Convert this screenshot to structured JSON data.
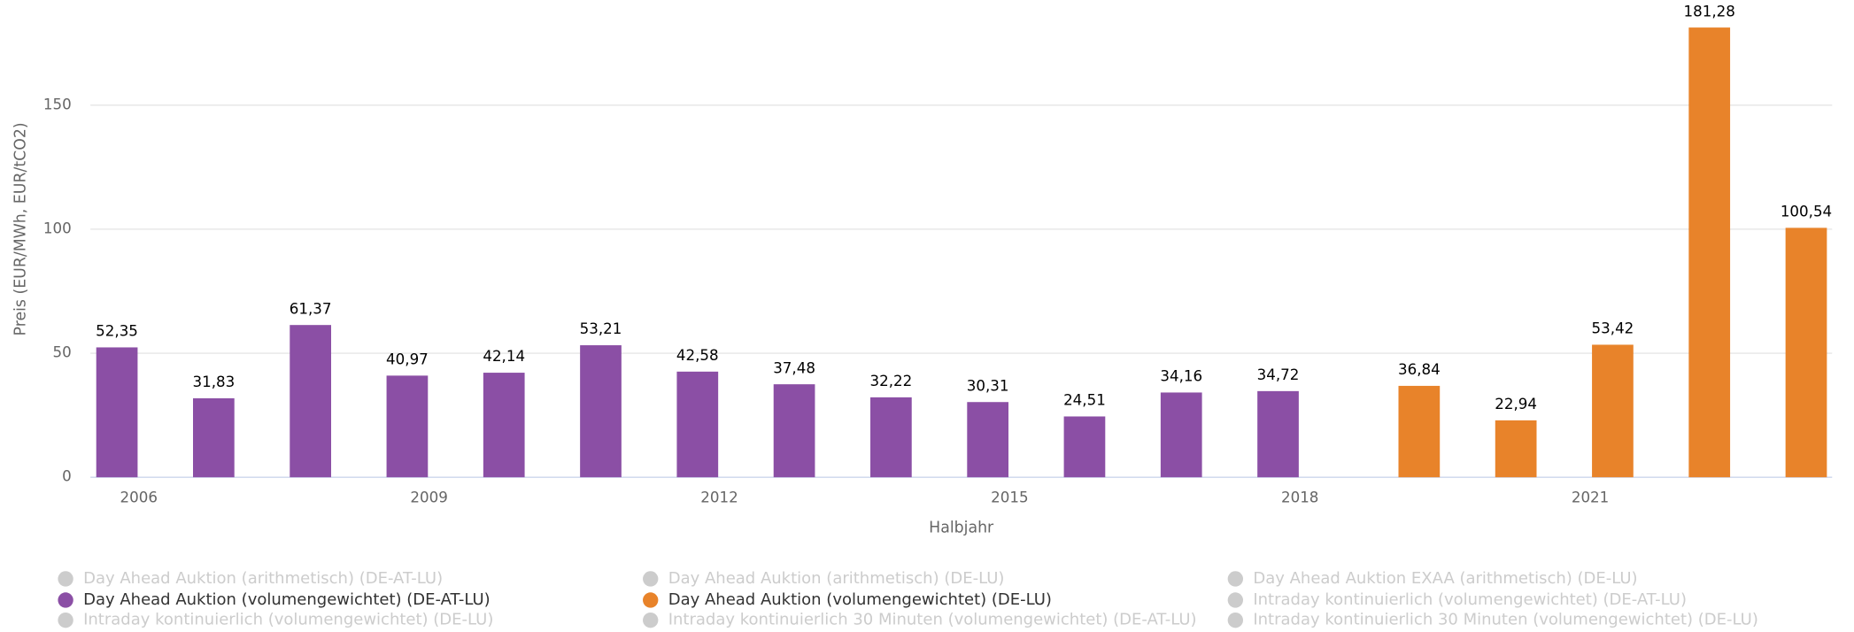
{
  "chart_data": {
    "type": "bar",
    "y_label": "Preis (EUR/MWh, EUR/tCO2)",
    "x_label": "Halbjahr",
    "categories": [
      "2006",
      null,
      null,
      "2009",
      null,
      null,
      "2012",
      null,
      null,
      "2015",
      null,
      null,
      "2018",
      null,
      null,
      "2021",
      null,
      null
    ],
    "ylim": [
      0,
      190
    ],
    "yticks": [
      0,
      50,
      100,
      150
    ],
    "grid": true,
    "series": [
      {
        "name": "Day Ahead Auktion (arithmetisch) (DE-AT-LU)",
        "color": "#cccccc",
        "visible": false,
        "values": [
          null,
          null,
          null,
          null,
          null,
          null,
          null,
          null,
          null,
          null,
          null,
          null,
          null,
          null,
          null,
          null,
          null,
          null
        ]
      },
      {
        "name": "Day Ahead Auktion (arithmetisch) (DE-LU)",
        "color": "#cccccc",
        "visible": false,
        "values": [
          null,
          null,
          null,
          null,
          null,
          null,
          null,
          null,
          null,
          null,
          null,
          null,
          null,
          null,
          null,
          null,
          null,
          null
        ]
      },
      {
        "name": "Day Ahead Auktion EXAA (arithmetisch) (DE-LU)",
        "color": "#cccccc",
        "visible": false,
        "values": [
          null,
          null,
          null,
          null,
          null,
          null,
          null,
          null,
          null,
          null,
          null,
          null,
          null,
          null,
          null,
          null,
          null,
          null
        ]
      },
      {
        "name": "Day Ahead Auktion (volumengewichtet) (DE-AT-LU)",
        "color": "#8b4fa5",
        "visible": true,
        "values": [
          52.35,
          31.83,
          61.37,
          40.97,
          42.14,
          53.21,
          42.58,
          37.48,
          32.22,
          30.31,
          24.51,
          34.16,
          34.72,
          null,
          null,
          null,
          null,
          null
        ],
        "value_labels": [
          "52,35",
          "31,83",
          "61,37",
          "40,97",
          "42,14",
          "53,21",
          "42,58",
          "37,48",
          "32,22",
          "30,31",
          "24,51",
          "34,16",
          "34,72",
          null,
          null,
          null,
          null,
          null
        ]
      },
      {
        "name": "Day Ahead Auktion (volumengewichtet) (DE-LU)",
        "color": "#e8832a",
        "visible": true,
        "values": [
          null,
          null,
          null,
          null,
          null,
          null,
          null,
          null,
          null,
          null,
          null,
          null,
          null,
          36.84,
          22.94,
          53.42,
          181.28,
          100.54
        ],
        "value_labels": [
          null,
          null,
          null,
          null,
          null,
          null,
          null,
          null,
          null,
          null,
          null,
          null,
          null,
          "36,84",
          "22,94",
          "53,42",
          "181,28",
          "100,54"
        ]
      },
      {
        "name": "Intraday kontinuierlich (volumengewichtet) (DE-AT-LU)",
        "color": "#cccccc",
        "visible": false,
        "values": [
          null,
          null,
          null,
          null,
          null,
          null,
          null,
          null,
          null,
          null,
          null,
          null,
          null,
          null,
          null,
          null,
          null,
          null
        ]
      },
      {
        "name": "Intraday kontinuierlich (volumengewichtet) (DE-LU)",
        "color": "#cccccc",
        "visible": false,
        "values": [
          null,
          null,
          null,
          null,
          null,
          null,
          null,
          null,
          null,
          null,
          null,
          null,
          null,
          null,
          null,
          null,
          null,
          null
        ]
      },
      {
        "name": "Intraday kontinuierlich 30 Minuten (volumengewichtet) (DE-AT-LU)",
        "color": "#cccccc",
        "visible": false,
        "values": [
          null,
          null,
          null,
          null,
          null,
          null,
          null,
          null,
          null,
          null,
          null,
          null,
          null,
          null,
          null,
          null,
          null,
          null
        ]
      },
      {
        "name": "Intraday kontinuierlich 30 Minuten (volumengewichtet) (DE-LU)",
        "color": "#cccccc",
        "visible": false,
        "values": [
          null,
          null,
          null,
          null,
          null,
          null,
          null,
          null,
          null,
          null,
          null,
          null,
          null,
          null,
          null,
          null,
          null,
          null
        ]
      }
    ]
  }
}
